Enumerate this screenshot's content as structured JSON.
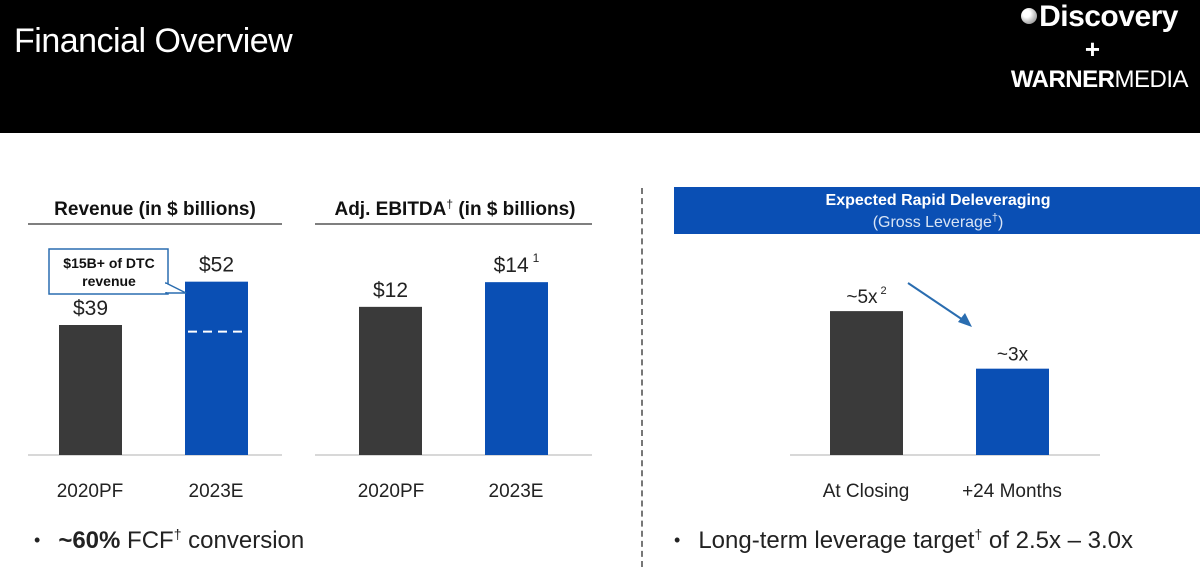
{
  "header": {
    "title": "Financial Overview",
    "logo_line1": "Discovery",
    "logo_plus": "+",
    "logo_line2_bold": "WARNER",
    "logo_line2_rest": "MEDIA"
  },
  "colors": {
    "dark_bar": "#3a3a3a",
    "blue_bar": "#0a4fb4",
    "banner": "#0a4fb4"
  },
  "chart_data": [
    {
      "type": "bar",
      "title": "Revenue (in $ billions)",
      "categories": [
        "2020PF",
        "2023E"
      ],
      "values": [
        39,
        52
      ],
      "labels": [
        "$39",
        "$52"
      ],
      "ylim": [
        0,
        60
      ],
      "callout": {
        "line1": "$15B+ of DTC",
        "line2": "revenue",
        "dtc_value": 15
      }
    },
    {
      "type": "bar",
      "title_main": "Adj. EBITDA",
      "title_sup": "†",
      "title_rest": " (in $ billions)",
      "categories": [
        "2020PF",
        "2023E"
      ],
      "values": [
        12,
        14
      ],
      "labels": [
        "$12",
        "$14"
      ],
      "label_sup": "1",
      "ylim": [
        0,
        16.2
      ]
    },
    {
      "type": "bar",
      "title": "Expected Rapid Deleveraging",
      "subtitle_main": "(Gross Leverage",
      "subtitle_sup": "†",
      "subtitle_end": ")",
      "categories": [
        "At Closing",
        "+24 Months"
      ],
      "values": [
        5,
        3
      ],
      "labels": [
        "~5x",
        "~3x"
      ],
      "label_sup": "2",
      "ylim": [
        0,
        6.95
      ]
    }
  ],
  "bullets": {
    "left_bold": "~60%",
    "left_text": " FCF",
    "left_sup": "†",
    "left_end": " conversion",
    "right_text": "Long-term leverage target",
    "right_sup": "†",
    "right_end": " of 2.5x – 3.0x",
    "dot": "•"
  }
}
